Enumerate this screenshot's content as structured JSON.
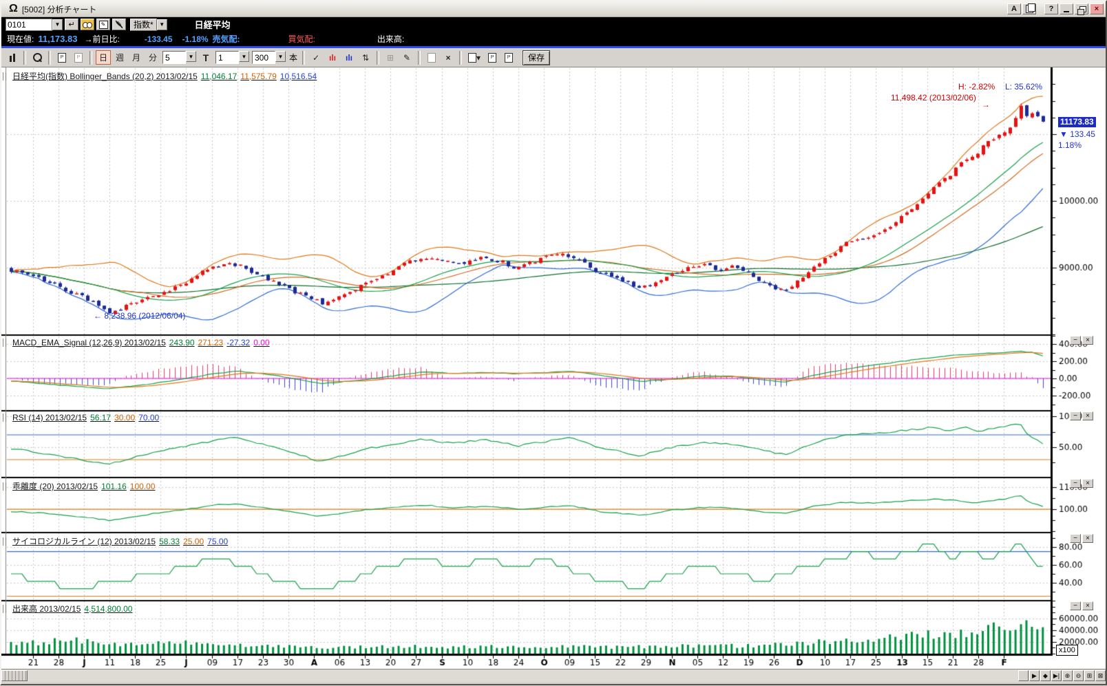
{
  "window": {
    "title": "[5002] 分析チャート",
    "logo_glyph": "Ω",
    "buttons": {
      "a": "A",
      "help": "?",
      "close": "×"
    }
  },
  "symbol_bar": {
    "code": "0101",
    "category": "指数*",
    "name": "日経平均"
  },
  "quote_bar": {
    "label_current": "現在値:",
    "current": "11,173.83",
    "label_change": "→前日比:",
    "change": "-133.45",
    "change_pct": "-1.18%",
    "label_ask": "売気配:",
    "label_bid": "買気配:",
    "label_volume": "出来高:"
  },
  "toolbar": {
    "periods": [
      "日",
      "週",
      "月",
      "分"
    ],
    "selected_period": "日",
    "ma_value": "5",
    "t_label": "T",
    "interval_value": "1",
    "bars_value": "300",
    "unit_label": "本",
    "save_label": "保存"
  },
  "icons": {
    "enter": "↵",
    "pencil": "✎",
    "updown": "⇅",
    "grid": "⊞",
    "check": "✓",
    "close_x": "×",
    "bars_red": "ılı",
    "bars_blue": "ılı",
    "dropdown": "▼",
    "edit": "✎"
  },
  "pane_controls": {
    "minimize": "−",
    "close": "×"
  },
  "panes": {
    "main": {
      "title": "日経平均(指数) Bollinger_Bands (20,2) 2013/02/15",
      "v1": "11,046.17",
      "v2": "11,575.79",
      "v3": "10,516.54"
    },
    "macd": {
      "title": "MACD_EMA_Signal (12,26,9) 2013/02/15",
      "v1": "243.90",
      "v2": "271.23",
      "v3": "-27.32",
      "v4": "0.00"
    },
    "rsi": {
      "title": "RSI (14) 2013/02/15",
      "v1": "56.17",
      "v2": "30.00",
      "v3": "70.00"
    },
    "kairi": {
      "title": "乖離度 (20) 2013/02/15",
      "v1": "101.16",
      "v2": "100.00"
    },
    "psych": {
      "title": "サイコロジカルライン (12) 2013/02/15",
      "v1": "58.33",
      "v2": "25.00",
      "v3": "75.00"
    },
    "volume": {
      "title": "出来高 2013/02/15",
      "v1": "4,514,800.00"
    }
  },
  "annotations": {
    "high_stat": "H: -2.82%",
    "low_stat": "L: 35.62%",
    "high_label": "11,498.42 (2013/02/06)",
    "high_arrow": "→",
    "low_label": "← 8,238.96 (2012/06/04)",
    "price": "11173.83",
    "change": "▼ 133.45",
    "pct": "1.18%",
    "multiplier": "x100"
  },
  "scrollbar": {
    "buttons": [
      "",
      "▶",
      "◆",
      "▶|",
      "⊕",
      "⊖",
      "⊞",
      "⊠"
    ]
  },
  "chart_data": {
    "type": "candlestick",
    "bars": 190,
    "x_labels": [
      "21",
      "28",
      "J",
      "11",
      "18",
      "25",
      "J",
      "09",
      "17",
      "23",
      "30",
      "A",
      "06",
      "13",
      "20",
      "27",
      "S",
      "10",
      "18",
      "24",
      "O",
      "09",
      "15",
      "22",
      "29",
      "N",
      "05",
      "12",
      "19",
      "26",
      "D",
      "10",
      "17",
      "25",
      "13",
      "15",
      "21",
      "28",
      "F"
    ],
    "x_bold": [
      2,
      6,
      11,
      16,
      20,
      25,
      30,
      34,
      38
    ],
    "axes": {
      "main": [
        {
          "v": 11000
        },
        {
          "v": 10000,
          "l": "10000.00"
        },
        {
          "v": 9000,
          "l": "9000.00"
        }
      ],
      "macd": [
        {
          "v": 400,
          "l": "400.00"
        },
        {
          "v": 200,
          "l": "200.00"
        },
        {
          "v": 0,
          "l": "0.00"
        },
        {
          "v": -200,
          "l": "-200.00"
        }
      ],
      "rsi": [
        {
          "v": 100,
          "l": "100.00"
        },
        {
          "v": 50,
          "l": "50.00"
        }
      ],
      "kairi": [
        {
          "v": 110,
          "l": "110.00"
        },
        {
          "v": 100,
          "l": "100.00"
        }
      ],
      "psych": [
        {
          "v": 80,
          "l": "80.00"
        },
        {
          "v": 60,
          "l": "60.00"
        },
        {
          "v": 40,
          "l": "40.00"
        }
      ],
      "volume": [
        {
          "v": 60000,
          "l": "60000.00"
        },
        {
          "v": 40000,
          "l": "40000.00"
        },
        {
          "v": 20000,
          "l": "20000.00"
        }
      ]
    },
    "hlines": {
      "macd": [
        {
          "v": 0,
          "c": "zero"
        }
      ],
      "rsi": [
        {
          "v": 70,
          "c": "line_hi"
        },
        {
          "v": 30,
          "c": "line_lo"
        }
      ],
      "kairi": [
        {
          "v": 100,
          "c": "line_lo"
        }
      ],
      "psych": [
        {
          "v": 75,
          "c": "line_hi"
        },
        {
          "v": 25,
          "c": "line_lo"
        }
      ]
    },
    "colors": {
      "up": "#e41414",
      "down": "#1e2a96",
      "band_upper": "#e07818",
      "band_mid": "#16a04a",
      "band_lower": "#2e6bd6",
      "ma_fast": "#d2691e",
      "ma_slow": "#0e6e2e",
      "macd": "#16a04a",
      "signal": "#e07818",
      "zero": "#ff00ee",
      "hist_pos": "#e83a66",
      "hist_neg": "#3a48d8",
      "line_hi": "#2e6bd6",
      "line_lo": "#e07818",
      "indicator": "#16a04a",
      "volume": "#009040",
      "grid": "#c6c6c6"
    },
    "anchors": {
      "price": [
        [
          0,
          8960
        ],
        [
          0.02,
          8900
        ],
        [
          0.04,
          8760
        ],
        [
          0.055,
          8640
        ],
        [
          0.07,
          8560
        ],
        [
          0.085,
          8430
        ],
        [
          0.095,
          8300
        ],
        [
          0.11,
          8420
        ],
        [
          0.13,
          8540
        ],
        [
          0.15,
          8640
        ],
        [
          0.17,
          8790
        ],
        [
          0.19,
          8990
        ],
        [
          0.21,
          9070
        ],
        [
          0.225,
          9010
        ],
        [
          0.24,
          8880
        ],
        [
          0.26,
          8750
        ],
        [
          0.275,
          8640
        ],
        [
          0.29,
          8540
        ],
        [
          0.305,
          8450
        ],
        [
          0.32,
          8580
        ],
        [
          0.34,
          8730
        ],
        [
          0.36,
          8870
        ],
        [
          0.38,
          9070
        ],
        [
          0.4,
          9160
        ],
        [
          0.42,
          9100
        ],
        [
          0.44,
          9070
        ],
        [
          0.455,
          9140
        ],
        [
          0.475,
          9090
        ],
        [
          0.49,
          8990
        ],
        [
          0.505,
          9080
        ],
        [
          0.52,
          9160
        ],
        [
          0.535,
          9210
        ],
        [
          0.55,
          9110
        ],
        [
          0.565,
          8970
        ],
        [
          0.58,
          8870
        ],
        [
          0.595,
          8790
        ],
        [
          0.61,
          8700
        ],
        [
          0.625,
          8770
        ],
        [
          0.64,
          8900
        ],
        [
          0.655,
          9000
        ],
        [
          0.67,
          9060
        ],
        [
          0.685,
          8970
        ],
        [
          0.7,
          9020
        ],
        [
          0.715,
          8900
        ],
        [
          0.73,
          8790
        ],
        [
          0.74,
          8700
        ],
        [
          0.75,
          8660
        ],
        [
          0.765,
          8830
        ],
        [
          0.78,
          9020
        ],
        [
          0.795,
          9200
        ],
        [
          0.81,
          9370
        ],
        [
          0.825,
          9420
        ],
        [
          0.84,
          9500
        ],
        [
          0.855,
          9650
        ],
        [
          0.87,
          9850
        ],
        [
          0.885,
          10050
        ],
        [
          0.895,
          10230
        ],
        [
          0.91,
          10400
        ],
        [
          0.92,
          10560
        ],
        [
          0.93,
          10650
        ],
        [
          0.94,
          10780
        ],
        [
          0.95,
          10900
        ],
        [
          0.958,
          10980
        ],
        [
          0.966,
          11080
        ],
        [
          0.974,
          11230
        ],
        [
          0.978,
          11430
        ],
        [
          0.982,
          11340
        ],
        [
          0.986,
          11260
        ],
        [
          0.99,
          11330
        ],
        [
          0.995,
          11290
        ],
        [
          1,
          11174
        ]
      ],
      "volume": [
        [
          0,
          16000
        ],
        [
          0.03,
          19000
        ],
        [
          0.06,
          24000
        ],
        [
          0.08,
          21000
        ],
        [
          0.1,
          17000
        ],
        [
          0.13,
          15000
        ],
        [
          0.16,
          22000
        ],
        [
          0.19,
          16000
        ],
        [
          0.22,
          14000
        ],
        [
          0.25,
          12500
        ],
        [
          0.28,
          11500
        ],
        [
          0.31,
          10500
        ],
        [
          0.34,
          12000
        ],
        [
          0.37,
          13000
        ],
        [
          0.4,
          12000
        ],
        [
          0.43,
          11000
        ],
        [
          0.46,
          13500
        ],
        [
          0.49,
          12000
        ],
        [
          0.52,
          11500
        ],
        [
          0.55,
          12500
        ],
        [
          0.58,
          11000
        ],
        [
          0.61,
          12500
        ],
        [
          0.64,
          13000
        ],
        [
          0.67,
          12500
        ],
        [
          0.7,
          13500
        ],
        [
          0.72,
          14000
        ],
        [
          0.75,
          16000
        ],
        [
          0.78,
          20000
        ],
        [
          0.81,
          24000
        ],
        [
          0.84,
          27000
        ],
        [
          0.87,
          30000
        ],
        [
          0.9,
          33000
        ],
        [
          0.92,
          36000
        ],
        [
          0.94,
          39000
        ],
        [
          0.955,
          44000
        ],
        [
          0.97,
          52000
        ],
        [
          0.98,
          60000
        ],
        [
          0.99,
          52000
        ],
        [
          1,
          45148
        ]
      ],
      "macd": [
        [
          0,
          -30
        ],
        [
          0.04,
          -70
        ],
        [
          0.07,
          -100
        ],
        [
          0.095,
          -120
        ],
        [
          0.13,
          -70
        ],
        [
          0.17,
          0
        ],
        [
          0.2,
          60
        ],
        [
          0.22,
          85
        ],
        [
          0.26,
          30
        ],
        [
          0.3,
          -60
        ],
        [
          0.34,
          -20
        ],
        [
          0.37,
          30
        ],
        [
          0.4,
          75
        ],
        [
          0.43,
          60
        ],
        [
          0.46,
          70
        ],
        [
          0.49,
          55
        ],
        [
          0.52,
          70
        ],
        [
          0.54,
          85
        ],
        [
          0.57,
          40
        ],
        [
          0.61,
          -35
        ],
        [
          0.64,
          -10
        ],
        [
          0.67,
          30
        ],
        [
          0.7,
          25
        ],
        [
          0.73,
          -15
        ],
        [
          0.75,
          -45
        ],
        [
          0.78,
          40
        ],
        [
          0.81,
          110
        ],
        [
          0.84,
          160
        ],
        [
          0.87,
          210
        ],
        [
          0.895,
          245
        ],
        [
          0.92,
          275
        ],
        [
          0.935,
          285
        ],
        [
          0.95,
          295
        ],
        [
          0.965,
          305
        ],
        [
          0.978,
          318
        ],
        [
          0.99,
          300
        ],
        [
          1,
          265
        ]
      ],
      "rsi": [
        [
          0,
          48
        ],
        [
          0.03,
          40
        ],
        [
          0.06,
          32
        ],
        [
          0.095,
          23
        ],
        [
          0.13,
          38
        ],
        [
          0.17,
          52
        ],
        [
          0.2,
          62
        ],
        [
          0.22,
          66
        ],
        [
          0.26,
          48
        ],
        [
          0.3,
          27
        ],
        [
          0.34,
          46
        ],
        [
          0.37,
          55
        ],
        [
          0.4,
          63
        ],
        [
          0.43,
          56
        ],
        [
          0.46,
          63
        ],
        [
          0.49,
          52
        ],
        [
          0.52,
          60
        ],
        [
          0.54,
          66
        ],
        [
          0.57,
          50
        ],
        [
          0.61,
          36
        ],
        [
          0.64,
          50
        ],
        [
          0.67,
          58
        ],
        [
          0.7,
          55
        ],
        [
          0.73,
          45
        ],
        [
          0.75,
          38
        ],
        [
          0.78,
          58
        ],
        [
          0.81,
          70
        ],
        [
          0.84,
          72
        ],
        [
          0.87,
          78
        ],
        [
          0.895,
          82
        ],
        [
          0.91,
          76
        ],
        [
          0.925,
          84
        ],
        [
          0.935,
          74
        ],
        [
          0.95,
          80
        ],
        [
          0.965,
          84
        ],
        [
          0.978,
          88
        ],
        [
          0.986,
          68
        ],
        [
          1,
          56.17
        ]
      ],
      "kairi": [
        [
          0,
          99
        ],
        [
          0.04,
          98
        ],
        [
          0.07,
          96.5
        ],
        [
          0.095,
          95
        ],
        [
          0.13,
          97.5
        ],
        [
          0.17,
          100
        ],
        [
          0.2,
          102
        ],
        [
          0.22,
          102.5
        ],
        [
          0.26,
          99.5
        ],
        [
          0.3,
          96.8
        ],
        [
          0.34,
          99.5
        ],
        [
          0.37,
          101
        ],
        [
          0.4,
          102
        ],
        [
          0.43,
          100.5
        ],
        [
          0.46,
          101.5
        ],
        [
          0.49,
          100
        ],
        [
          0.52,
          101
        ],
        [
          0.54,
          101.8
        ],
        [
          0.57,
          99
        ],
        [
          0.61,
          97.2
        ],
        [
          0.64,
          99.5
        ],
        [
          0.67,
          100.8
        ],
        [
          0.7,
          100.5
        ],
        [
          0.73,
          98.8
        ],
        [
          0.75,
          98
        ],
        [
          0.78,
          101.5
        ],
        [
          0.81,
          103.2
        ],
        [
          0.84,
          102.8
        ],
        [
          0.87,
          104
        ],
        [
          0.895,
          104.5
        ],
        [
          0.92,
          103.8
        ],
        [
          0.935,
          103
        ],
        [
          0.95,
          104
        ],
        [
          0.965,
          104.8
        ],
        [
          0.978,
          106.2
        ],
        [
          0.986,
          103.5
        ],
        [
          1,
          101.16
        ]
      ],
      "psych": [
        [
          0,
          50
        ],
        [
          0.03,
          42
        ],
        [
          0.06,
          33
        ],
        [
          0.1,
          42
        ],
        [
          0.14,
          50
        ],
        [
          0.17,
          58
        ],
        [
          0.2,
          67
        ],
        [
          0.23,
          58
        ],
        [
          0.26,
          42
        ],
        [
          0.3,
          33
        ],
        [
          0.33,
          42
        ],
        [
          0.36,
          58
        ],
        [
          0.4,
          67
        ],
        [
          0.43,
          58
        ],
        [
          0.46,
          67
        ],
        [
          0.49,
          58
        ],
        [
          0.52,
          67
        ],
        [
          0.55,
          50
        ],
        [
          0.58,
          42
        ],
        [
          0.61,
          33
        ],
        [
          0.64,
          50
        ],
        [
          0.67,
          58
        ],
        [
          0.7,
          50
        ],
        [
          0.73,
          42
        ],
        [
          0.75,
          50
        ],
        [
          0.77,
          58
        ],
        [
          0.8,
          67
        ],
        [
          0.82,
          75
        ],
        [
          0.85,
          67
        ],
        [
          0.87,
          75
        ],
        [
          0.89,
          83
        ],
        [
          0.91,
          67
        ],
        [
          0.93,
          75
        ],
        [
          0.95,
          67
        ],
        [
          0.965,
          75
        ],
        [
          0.978,
          83
        ],
        [
          0.988,
          67
        ],
        [
          1,
          58.33
        ]
      ]
    }
  }
}
